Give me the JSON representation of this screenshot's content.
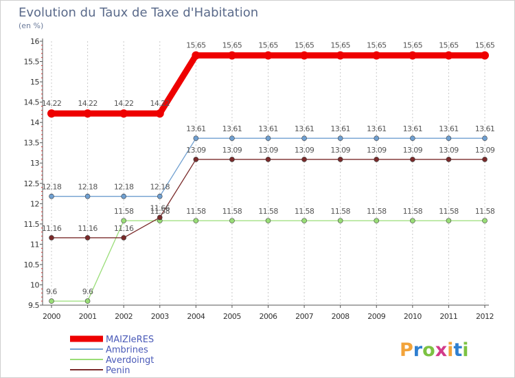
{
  "chart_data": {
    "type": "line",
    "title": "Evolution du Taux de Taxe d'Habitation",
    "subtitle": "(en %)",
    "xlabel": "",
    "ylabel": "",
    "ylim": [
      9.5,
      16
    ],
    "ytick_step": 0.5,
    "ytick_labels": [
      "9.5",
      "10",
      "10.5",
      "11",
      "11.5",
      "12",
      "12.5",
      "13",
      "13.5",
      "14",
      "14.5",
      "15",
      "15.5",
      "16"
    ],
    "categories": [
      "2000",
      "2001",
      "2002",
      "2003",
      "2004",
      "2005",
      "2006",
      "2007",
      "2008",
      "2009",
      "2010",
      "2011",
      "2012"
    ],
    "grid": "vertical dashed",
    "series": [
      {
        "name": "MAIZIeRES",
        "color": "#ee0000",
        "values": [
          14.22,
          14.22,
          14.22,
          14.22,
          15.65,
          15.65,
          15.65,
          15.65,
          15.65,
          15.65,
          15.65,
          15.65,
          15.65
        ],
        "labels": [
          "14.22",
          "14.22",
          "14.22",
          "14.22",
          "15.65",
          "15.65",
          "15.65",
          "15.65",
          "15.65",
          "15.65",
          "15.65",
          "15.65",
          "15.65"
        ]
      },
      {
        "name": "Ambrines",
        "color": "#6f9fd0",
        "values": [
          12.18,
          12.18,
          12.18,
          12.18,
          13.61,
          13.61,
          13.61,
          13.61,
          13.61,
          13.61,
          13.61,
          13.61,
          13.61
        ],
        "labels": [
          "12.18",
          "12.18",
          "12.18",
          "12.18",
          "13.61",
          "13.61",
          "13.61",
          "13.61",
          "13.61",
          "13.61",
          "13.61",
          "13.61",
          "13.61"
        ]
      },
      {
        "name": "Averdoingt",
        "color": "#99dd77",
        "values": [
          9.6,
          9.6,
          11.58,
          11.58,
          11.58,
          11.58,
          11.58,
          11.58,
          11.58,
          11.58,
          11.58,
          11.58,
          11.58
        ],
        "labels": [
          "9.6",
          "9.6",
          "11.58",
          "11.58",
          "11.58",
          "11.58",
          "11.58",
          "11.58",
          "11.58",
          "11.58",
          "11.58",
          "11.58",
          "11.58"
        ]
      },
      {
        "name": "Penin",
        "color": "#7a2a2a",
        "values": [
          11.16,
          11.16,
          11.16,
          11.66,
          13.09,
          13.09,
          13.09,
          13.09,
          13.09,
          13.09,
          13.09,
          13.09,
          13.09
        ],
        "labels": [
          "11.16",
          "11.16",
          "11.16",
          "11.66",
          "13.09",
          "13.09",
          "13.09",
          "13.09",
          "13.09",
          "13.09",
          "13.09",
          "13.09",
          "13.09"
        ]
      }
    ]
  },
  "legend": {
    "placement": "bottom-left",
    "items": [
      "MAIZIeRES",
      "Ambrines",
      "Averdoingt",
      "Penin"
    ]
  },
  "brand": {
    "letters": [
      "P",
      "r",
      "o",
      "x",
      "i",
      "t",
      "i"
    ],
    "colors": [
      "#f2a33a",
      "#2f7fd0",
      "#7cc242",
      "#d23a8a",
      "#f2a33a",
      "#2f7fd0",
      "#7cc242"
    ]
  }
}
